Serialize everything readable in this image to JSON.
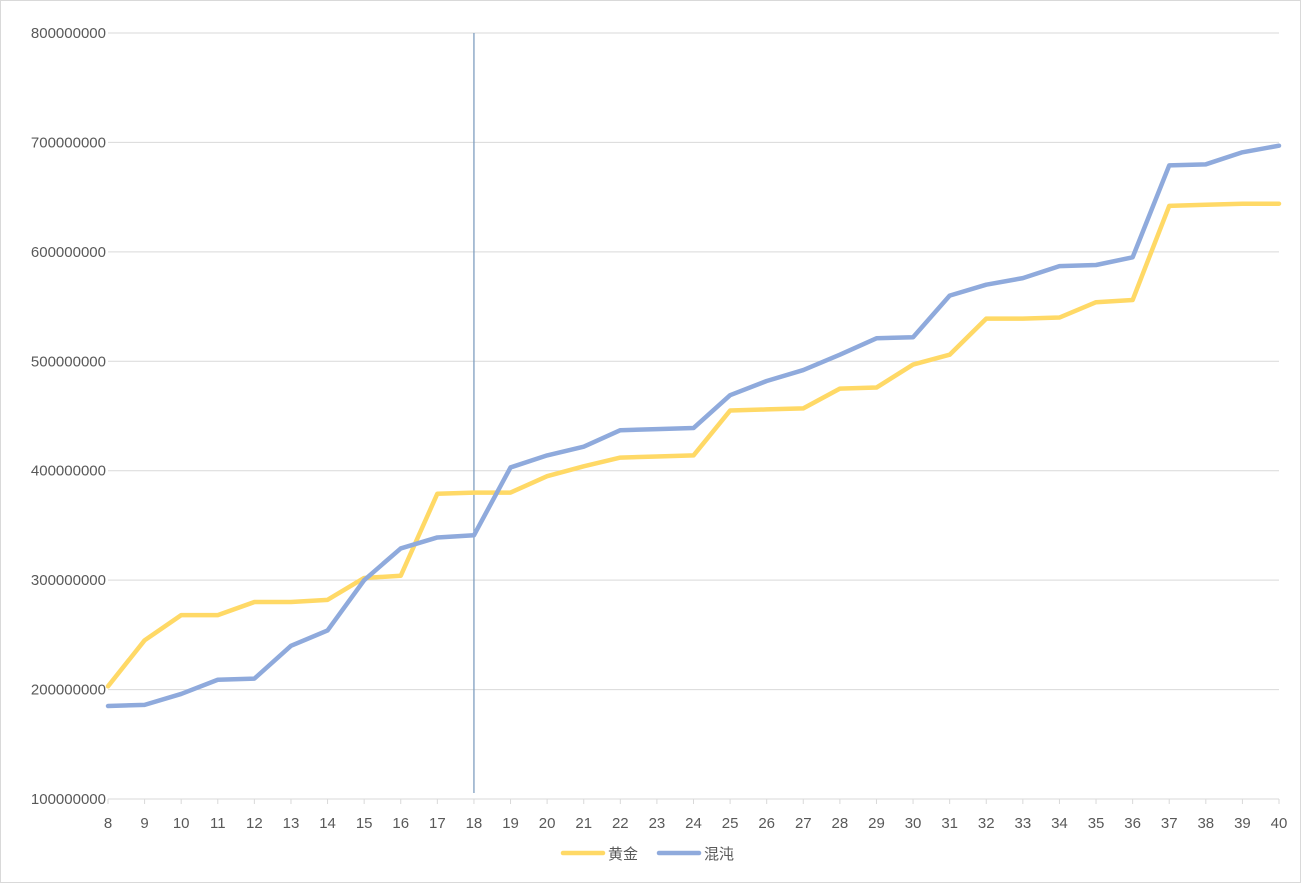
{
  "chart_data": {
    "type": "line",
    "title": "",
    "xlabel": "",
    "ylabel": "",
    "x": [
      8,
      9,
      10,
      11,
      12,
      13,
      14,
      15,
      16,
      17,
      18,
      19,
      20,
      21,
      22,
      23,
      24,
      25,
      26,
      27,
      28,
      29,
      30,
      31,
      32,
      33,
      34,
      35,
      36,
      37,
      38,
      39,
      40
    ],
    "ylim": [
      100000000,
      800000000
    ],
    "yticks": [
      "100000000",
      "200000000",
      "300000000",
      "400000000",
      "500000000",
      "600000000",
      "700000000",
      "800000000"
    ],
    "grid": true,
    "legend_position": "bottom",
    "vertical_marker_x": 18,
    "series": [
      {
        "name": "黄金",
        "color": "#ffd966",
        "values": [
          203000000,
          245000000,
          268000000,
          268000000,
          280000000,
          280000000,
          282000000,
          302000000,
          304000000,
          379000000,
          380000000,
          380000000,
          395000000,
          404000000,
          412000000,
          413000000,
          414000000,
          455000000,
          456000000,
          457000000,
          475000000,
          476000000,
          497000000,
          506000000,
          539000000,
          539000000,
          540000000,
          554000000,
          556000000,
          642000000,
          643000000,
          644000000,
          644000000
        ]
      },
      {
        "name": "混沌",
        "color": "#8faadc",
        "values": [
          185000000,
          186000000,
          196000000,
          209000000,
          210000000,
          240000000,
          254000000,
          300000000,
          329000000,
          339000000,
          341000000,
          403000000,
          414000000,
          422000000,
          437000000,
          438000000,
          439000000,
          469000000,
          482000000,
          492000000,
          506000000,
          521000000,
          522000000,
          560000000,
          570000000,
          576000000,
          587000000,
          588000000,
          595000000,
          679000000,
          680000000,
          691000000,
          697000000
        ]
      }
    ],
    "colors": {
      "gridline": "#d9d9d9",
      "marker_line": "#7f9fbf",
      "axis_text": "#595959"
    }
  }
}
